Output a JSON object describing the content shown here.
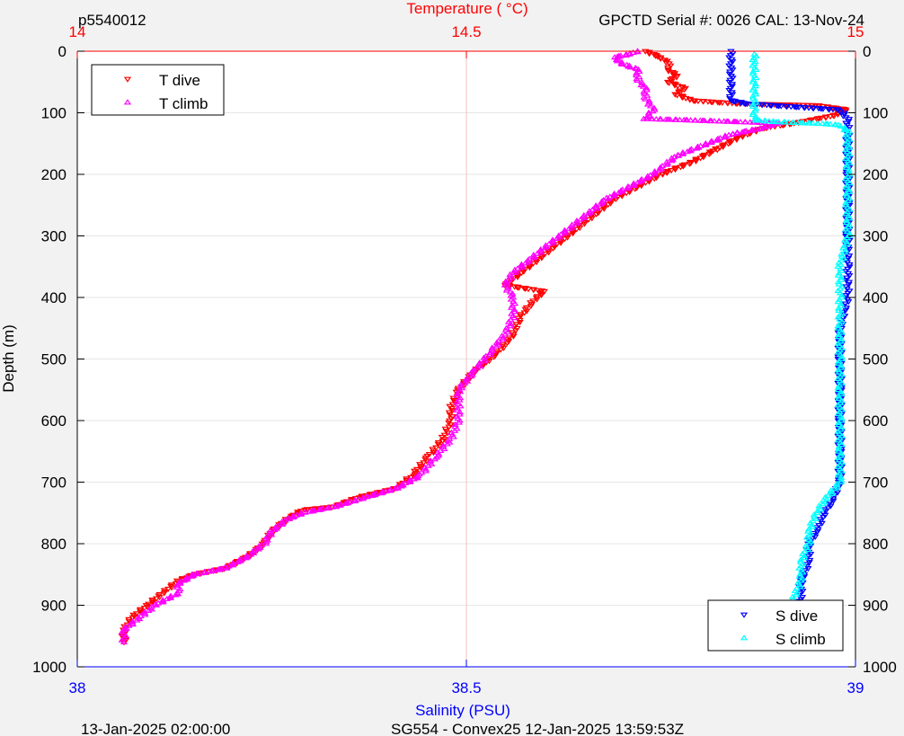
{
  "header": {
    "top_left": "p5540012",
    "top_right": "GPCTD Serial #: 0026 CAL: 13-Nov-24"
  },
  "footer": {
    "left": "13-Jan-2025 02:00:00",
    "center": "SG554 - Convex25 12-Jan-2025 13:59:53Z"
  },
  "colors": {
    "t_dive": "#ff0000",
    "t_climb": "#ff00ff",
    "s_dive": "#0000ff",
    "s_climb": "#00ffff",
    "temp_axis": "#ff0000",
    "sal_axis": "#0000ff",
    "grid": "#e6e6e6"
  },
  "chart_data": {
    "type": "scatter",
    "ylabel": "Depth (m)",
    "ylim": [
      1000,
      0
    ],
    "yticks": [
      "0",
      "100",
      "200",
      "300",
      "400",
      "500",
      "600",
      "700",
      "800",
      "900",
      "1000"
    ],
    "ytick_values": [
      0,
      100,
      200,
      300,
      400,
      500,
      600,
      700,
      800,
      900,
      1000
    ],
    "top_axis": {
      "label": "Temperature (   °C)",
      "range": [
        14,
        15
      ],
      "ticks": [
        "14",
        "14.5",
        "15"
      ],
      "tick_values": [
        14,
        14.5,
        15
      ]
    },
    "bottom_axis": {
      "label": "Salinity (PSU)",
      "range": [
        38,
        39
      ],
      "ticks": [
        "38",
        "38.5",
        "39"
      ],
      "tick_values": [
        38,
        38.5,
        39
      ]
    },
    "grid": true,
    "legends": [
      {
        "placement": "top-left",
        "entries": [
          "T dive",
          "T climb"
        ]
      },
      {
        "placement": "bottom-right",
        "entries": [
          "S dive",
          "S climb"
        ]
      }
    ],
    "series": [
      {
        "name": "T dive",
        "axis": "temperature",
        "marker": "triangle-down",
        "points": [
          [
            14.73,
            0
          ],
          [
            14.75,
            10
          ],
          [
            14.76,
            20
          ],
          [
            14.76,
            30
          ],
          [
            14.77,
            40
          ],
          [
            14.76,
            50
          ],
          [
            14.78,
            60
          ],
          [
            14.77,
            70
          ],
          [
            14.79,
            80
          ],
          [
            14.85,
            85
          ],
          [
            14.95,
            88
          ],
          [
            14.99,
            95
          ],
          [
            14.97,
            105
          ],
          [
            14.93,
            115
          ],
          [
            14.88,
            125
          ],
          [
            14.85,
            140
          ],
          [
            14.82,
            160
          ],
          [
            14.79,
            180
          ],
          [
            14.75,
            200
          ],
          [
            14.72,
            220
          ],
          [
            14.69,
            240
          ],
          [
            14.67,
            260
          ],
          [
            14.65,
            280
          ],
          [
            14.63,
            300
          ],
          [
            14.61,
            320
          ],
          [
            14.59,
            340
          ],
          [
            14.57,
            360
          ],
          [
            14.55,
            380
          ],
          [
            14.6,
            390
          ],
          [
            14.59,
            400
          ],
          [
            14.57,
            430
          ],
          [
            14.56,
            460
          ],
          [
            14.54,
            490
          ],
          [
            14.51,
            520
          ],
          [
            14.49,
            550
          ],
          [
            14.48,
            580
          ],
          [
            14.48,
            600
          ],
          [
            14.47,
            630
          ],
          [
            14.45,
            660
          ],
          [
            14.43,
            690
          ],
          [
            14.41,
            710
          ],
          [
            14.36,
            725
          ],
          [
            14.33,
            740
          ],
          [
            14.29,
            745
          ],
          [
            14.27,
            760
          ],
          [
            14.25,
            780
          ],
          [
            14.24,
            800
          ],
          [
            14.22,
            820
          ],
          [
            14.19,
            840
          ],
          [
            14.15,
            850
          ],
          [
            14.13,
            860
          ],
          [
            14.11,
            880
          ],
          [
            14.09,
            900
          ],
          [
            14.07,
            920
          ],
          [
            14.06,
            940
          ],
          [
            14.06,
            960
          ]
        ]
      },
      {
        "name": "T climb",
        "axis": "temperature",
        "marker": "triangle-up",
        "points": [
          [
            14.72,
            0
          ],
          [
            14.71,
            5
          ],
          [
            14.69,
            10
          ],
          [
            14.7,
            20
          ],
          [
            14.72,
            30
          ],
          [
            14.72,
            45
          ],
          [
            14.73,
            60
          ],
          [
            14.73,
            75
          ],
          [
            14.74,
            95
          ],
          [
            14.73,
            110
          ],
          [
            14.78,
            112
          ],
          [
            14.85,
            115
          ],
          [
            14.9,
            117
          ],
          [
            14.88,
            125
          ],
          [
            14.84,
            135
          ],
          [
            14.81,
            150
          ],
          [
            14.77,
            170
          ],
          [
            14.76,
            180
          ],
          [
            14.74,
            200
          ],
          [
            14.71,
            220
          ],
          [
            14.68,
            240
          ],
          [
            14.66,
            260
          ],
          [
            14.64,
            280
          ],
          [
            14.62,
            300
          ],
          [
            14.6,
            320
          ],
          [
            14.58,
            340
          ],
          [
            14.56,
            360
          ],
          [
            14.55,
            380
          ],
          [
            14.56,
            400
          ],
          [
            14.56,
            430
          ],
          [
            14.55,
            460
          ],
          [
            14.53,
            490
          ],
          [
            14.51,
            520
          ],
          [
            14.49,
            550
          ],
          [
            14.49,
            580
          ],
          [
            14.49,
            600
          ],
          [
            14.48,
            630
          ],
          [
            14.46,
            660
          ],
          [
            14.44,
            690
          ],
          [
            14.41,
            710
          ],
          [
            14.37,
            725
          ],
          [
            14.33,
            740
          ],
          [
            14.29,
            750
          ],
          [
            14.27,
            760
          ],
          [
            14.25,
            780
          ],
          [
            14.24,
            800
          ],
          [
            14.22,
            820
          ],
          [
            14.19,
            840
          ],
          [
            14.15,
            850
          ],
          [
            14.13,
            865
          ],
          [
            14.13,
            880
          ],
          [
            14.1,
            900
          ],
          [
            14.08,
            920
          ],
          [
            14.06,
            940
          ],
          [
            14.06,
            960
          ]
        ]
      },
      {
        "name": "S dive",
        "axis": "salinity",
        "marker": "triangle-down",
        "points": [
          [
            38.84,
            0
          ],
          [
            38.84,
            20
          ],
          [
            38.84,
            40
          ],
          [
            38.84,
            60
          ],
          [
            38.84,
            80
          ],
          [
            38.86,
            85
          ],
          [
            38.92,
            90
          ],
          [
            38.98,
            95
          ],
          [
            38.99,
            110
          ],
          [
            38.99,
            130
          ],
          [
            38.99,
            160
          ],
          [
            38.99,
            200
          ],
          [
            38.99,
            250
          ],
          [
            38.99,
            300
          ],
          [
            38.99,
            350
          ],
          [
            38.99,
            400
          ],
          [
            38.98,
            450
          ],
          [
            38.98,
            500
          ],
          [
            38.98,
            550
          ],
          [
            38.98,
            600
          ],
          [
            38.98,
            650
          ],
          [
            38.98,
            700
          ],
          [
            38.97,
            730
          ],
          [
            38.96,
            750
          ],
          [
            38.95,
            780
          ],
          [
            38.94,
            800
          ],
          [
            38.94,
            830
          ],
          [
            38.93,
            860
          ],
          [
            38.93,
            890
          ],
          [
            38.92,
            920
          ],
          [
            38.92,
            950
          ],
          [
            38.92,
            960
          ]
        ]
      },
      {
        "name": "S climb",
        "axis": "salinity",
        "marker": "triangle-up",
        "points": [
          [
            38.87,
            5
          ],
          [
            38.87,
            20
          ],
          [
            38.87,
            40
          ],
          [
            38.87,
            60
          ],
          [
            38.87,
            80
          ],
          [
            38.87,
            100
          ],
          [
            38.87,
            112
          ],
          [
            38.9,
            115
          ],
          [
            38.96,
            118
          ],
          [
            38.98,
            120
          ],
          [
            38.99,
            130
          ],
          [
            38.99,
            160
          ],
          [
            38.99,
            200
          ],
          [
            38.99,
            250
          ],
          [
            38.99,
            300
          ],
          [
            38.98,
            350
          ],
          [
            38.98,
            400
          ],
          [
            38.98,
            450
          ],
          [
            38.98,
            500
          ],
          [
            38.98,
            550
          ],
          [
            38.98,
            600
          ],
          [
            38.98,
            650
          ],
          [
            38.98,
            700
          ],
          [
            38.96,
            730
          ],
          [
            38.95,
            750
          ],
          [
            38.94,
            780
          ],
          [
            38.94,
            800
          ],
          [
            38.93,
            830
          ],
          [
            38.93,
            860
          ],
          [
            38.92,
            890
          ],
          [
            38.92,
            920
          ],
          [
            38.92,
            950
          ],
          [
            38.91,
            965
          ]
        ]
      }
    ]
  }
}
